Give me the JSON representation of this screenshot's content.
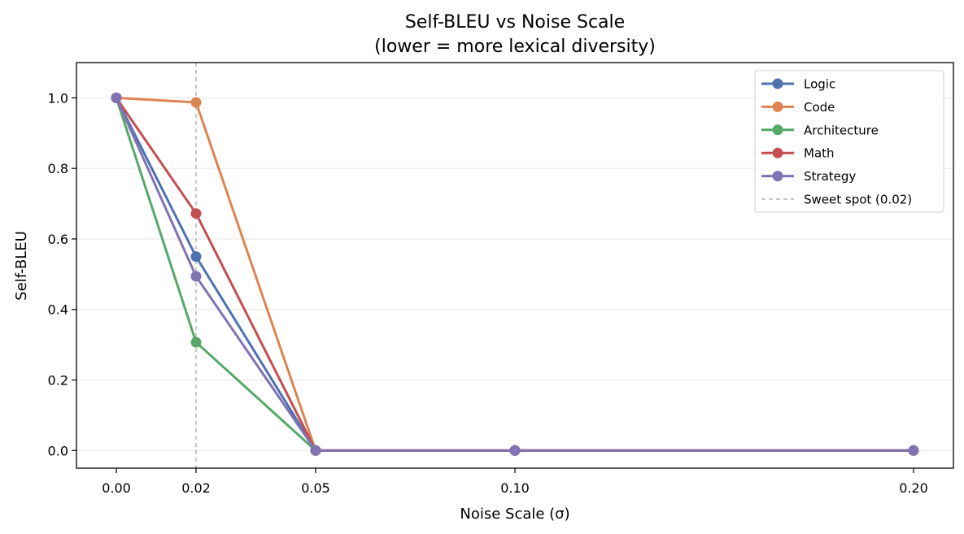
{
  "chart_data": {
    "type": "line",
    "title": "Self-BLEU vs Noise Scale",
    "subtitle": "(lower = more lexical diversity)",
    "xlabel": "Noise Scale (σ)",
    "ylabel": "Self-BLEU",
    "x": [
      0.0,
      0.02,
      0.05,
      0.1,
      0.2
    ],
    "x_tick_labels": [
      "0.00",
      "0.02",
      "0.05",
      "0.10",
      "0.20"
    ],
    "xlim": [
      -0.01,
      0.21
    ],
    "ylim": [
      -0.05,
      1.1
    ],
    "y_ticks": [
      0.0,
      0.2,
      0.4,
      0.6,
      0.8,
      1.0
    ],
    "y_tick_labels": [
      "0.0",
      "0.2",
      "0.4",
      "0.6",
      "0.8",
      "1.0"
    ],
    "grid": "horizontal",
    "legend_position": "top-right",
    "series": [
      {
        "name": "Logic",
        "color": "#4c72b0",
        "values": [
          1.0,
          0.55,
          0.0,
          0.0,
          0.0
        ]
      },
      {
        "name": "Code",
        "color": "#dd8452",
        "values": [
          1.0,
          0.987,
          0.0,
          0.0,
          0.0
        ]
      },
      {
        "name": "Architecture",
        "color": "#55a868",
        "values": [
          1.0,
          0.307,
          0.0,
          0.0,
          0.0
        ]
      },
      {
        "name": "Math",
        "color": "#c44e52",
        "values": [
          1.0,
          0.672,
          0.0,
          0.0,
          0.0
        ]
      },
      {
        "name": "Strategy",
        "color": "#8172b3",
        "values": [
          1.0,
          0.494,
          0.0,
          0.0,
          0.0
        ]
      }
    ],
    "reference_line": {
      "name": "Sweet spot (0.02)",
      "x": 0.02,
      "color": "#aaaaaa"
    }
  }
}
